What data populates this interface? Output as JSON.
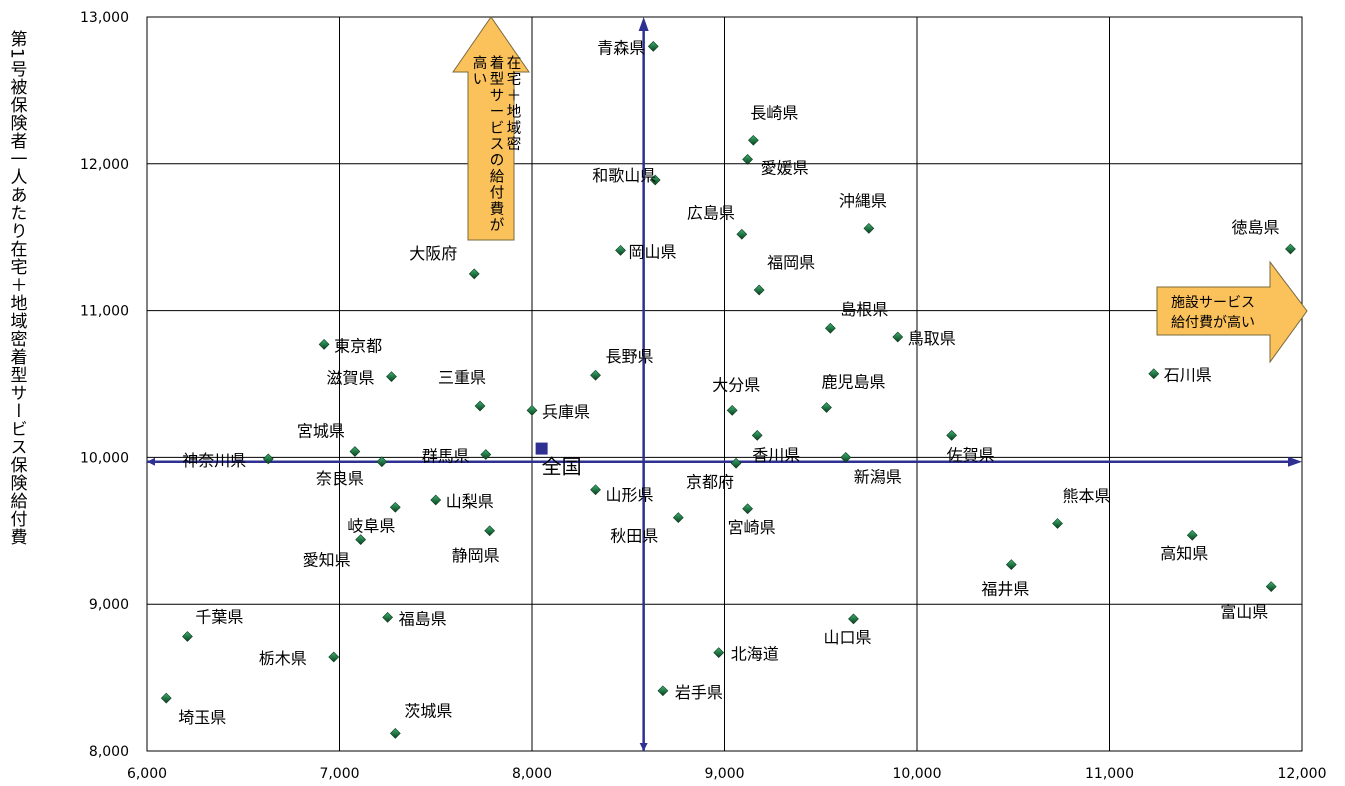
{
  "chart_data": {
    "type": "scatter",
    "title": "",
    "xlabel": "",
    "ylabel": "第1号被保険者一人あたり在宅＋地域密着型サービス保険給付費",
    "xlim": [
      6000,
      12000
    ],
    "ylim": [
      8000,
      13000
    ],
    "x_ticks": [
      "6,000",
      "7,000",
      "8,000",
      "9,000",
      "10,000",
      "11,000",
      "12,000"
    ],
    "y_ticks": [
      "8,000",
      "9,000",
      "10,000",
      "11,000",
      "12,000",
      "13,000"
    ],
    "grid": true,
    "reference_lines": {
      "x": 8580,
      "y": 9970
    },
    "arrow_up_label": "在宅＋地域密着型サービスの給付費が高い",
    "arrow_right_label": "施設サービス給付費が高い",
    "national": {
      "name": "全国",
      "x": 8050,
      "y": 10060
    },
    "points": [
      {
        "name": "青森県",
        "x": 8630,
        "y": 12800
      },
      {
        "name": "長崎県",
        "x": 9150,
        "y": 12160
      },
      {
        "name": "愛媛県",
        "x": 9120,
        "y": 12030
      },
      {
        "name": "和歌山県",
        "x": 8640,
        "y": 11890
      },
      {
        "name": "沖縄県",
        "x": 9750,
        "y": 11560
      },
      {
        "name": "広島県",
        "x": 9090,
        "y": 11520
      },
      {
        "name": "徳島県",
        "x": 11940,
        "y": 11420
      },
      {
        "name": "岡山県",
        "x": 8460,
        "y": 11410
      },
      {
        "name": "大阪府",
        "x": 7700,
        "y": 11250
      },
      {
        "name": "福岡県",
        "x": 9180,
        "y": 11140
      },
      {
        "name": "島根県",
        "x": 9550,
        "y": 10880
      },
      {
        "name": "鳥取県",
        "x": 9900,
        "y": 10820
      },
      {
        "name": "東京都",
        "x": 6920,
        "y": 10770
      },
      {
        "name": "石川県",
        "x": 11230,
        "y": 10570
      },
      {
        "name": "長野県",
        "x": 8330,
        "y": 10560
      },
      {
        "name": "滋賀県",
        "x": 7270,
        "y": 10550
      },
      {
        "name": "三重県",
        "x": 7730,
        "y": 10350
      },
      {
        "name": "鹿児島県",
        "x": 9530,
        "y": 10340
      },
      {
        "name": "大分県",
        "x": 9040,
        "y": 10320
      },
      {
        "name": "兵庫県",
        "x": 8000,
        "y": 10320
      },
      {
        "name": "佐賀県",
        "x": 10180,
        "y": 10150
      },
      {
        "name": "香川県",
        "x": 9170,
        "y": 10150
      },
      {
        "name": "宮城県",
        "x": 7080,
        "y": 10040
      },
      {
        "name": "群馬県",
        "x": 7760,
        "y": 10020
      },
      {
        "name": "新潟県",
        "x": 9630,
        "y": 10000
      },
      {
        "name": "神奈川県",
        "x": 6630,
        "y": 9990
      },
      {
        "name": "奈良県",
        "x": 7220,
        "y": 9970
      },
      {
        "name": "京都府",
        "x": 9060,
        "y": 9960
      },
      {
        "name": "山形県",
        "x": 8330,
        "y": 9780
      },
      {
        "name": "山梨県",
        "x": 7500,
        "y": 9710
      },
      {
        "name": "岐阜県",
        "x": 7290,
        "y": 9660
      },
      {
        "name": "宮崎県",
        "x": 9120,
        "y": 9650
      },
      {
        "name": "秋田県",
        "x": 8760,
        "y": 9590
      },
      {
        "name": "熊本県",
        "x": 10730,
        "y": 9550
      },
      {
        "name": "静岡県",
        "x": 7780,
        "y": 9500
      },
      {
        "name": "高知県",
        "x": 11430,
        "y": 9470
      },
      {
        "name": "愛知県",
        "x": 7110,
        "y": 9440
      },
      {
        "name": "福井県",
        "x": 10490,
        "y": 9270
      },
      {
        "name": "富山県",
        "x": 11840,
        "y": 9120
      },
      {
        "name": "福島県",
        "x": 7250,
        "y": 8910
      },
      {
        "name": "山口県",
        "x": 9670,
        "y": 8900
      },
      {
        "name": "千葉県",
        "x": 6210,
        "y": 8780
      },
      {
        "name": "北海道",
        "x": 8970,
        "y": 8670
      },
      {
        "name": "栃木県",
        "x": 6970,
        "y": 8640
      },
      {
        "name": "岩手県",
        "x": 8680,
        "y": 8410
      },
      {
        "name": "埼玉県",
        "x": 6100,
        "y": 8360
      },
      {
        "name": "茨城県",
        "x": 7290,
        "y": 8120
      }
    ]
  },
  "colors": {
    "axis_line": "#2e3192",
    "national_marker": "#2e3192",
    "point_marker": "#2e8b57",
    "arrow_fill": "#fbc15b",
    "arrow_stroke": "#7a6a3a",
    "grid": "#000000"
  }
}
